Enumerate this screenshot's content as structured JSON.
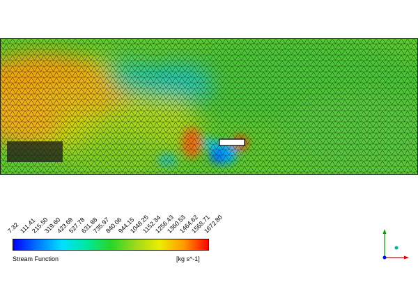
{
  "legend": {
    "title": "Stream Function",
    "units": "[kg s^-1]",
    "ticks": [
      "7.32",
      "111.41",
      "215.50",
      "319.60",
      "423.69",
      "527.78",
      "631.88",
      "735.97",
      "840.06",
      "944.15",
      "1048.25",
      "1152.34",
      "1256.43",
      "1360.53",
      "1464.62",
      "1568.71",
      "1672.80"
    ],
    "colors": [
      "#0000ff",
      "#0077ff",
      "#00e0ff",
      "#00e8a0",
      "#28d628",
      "#9cd81c",
      "#ecec00",
      "#ff9a00",
      "#ff0000"
    ]
  },
  "field": {
    "mesh_color": "#1a1a1a",
    "obstacle_color": "#ffffff"
  },
  "triad": {
    "axis_colors": {
      "y": "#00a000",
      "x": "#e00000",
      "z": "#0000ff",
      "center": "#00b0a0"
    }
  }
}
